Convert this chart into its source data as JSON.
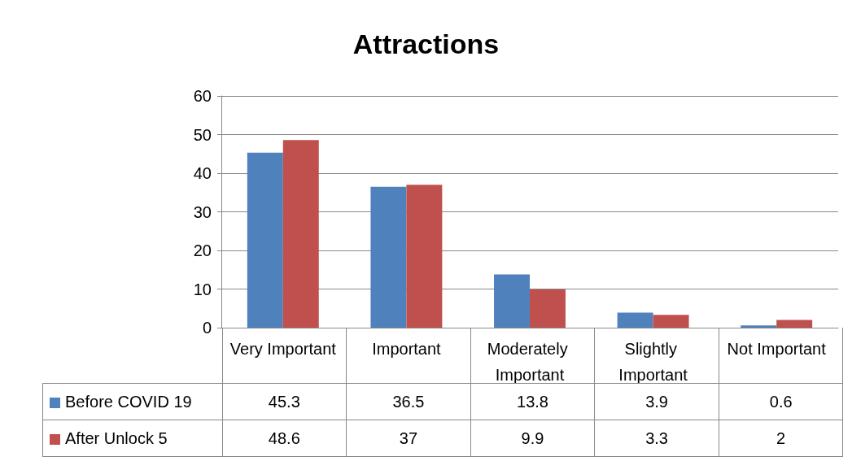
{
  "chart_data": {
    "type": "bar",
    "title": "Attractions",
    "categories": [
      "Very Important",
      "Important",
      "Moderately Important",
      "Slightly Important",
      "Not Important"
    ],
    "series": [
      {
        "name": "Before COVID 19",
        "color": "#4f81bd",
        "values": [
          45.3,
          36.5,
          13.8,
          3.9,
          0.6
        ]
      },
      {
        "name": "After Unlock 5",
        "color": "#c0504d",
        "values": [
          48.6,
          37,
          9.9,
          3.3,
          2
        ]
      }
    ],
    "ylim": [
      0,
      60
    ],
    "yticks": [
      0,
      10,
      20,
      30,
      40,
      50,
      60
    ],
    "grid": "y",
    "legend": "bottom",
    "data_labels": true
  }
}
